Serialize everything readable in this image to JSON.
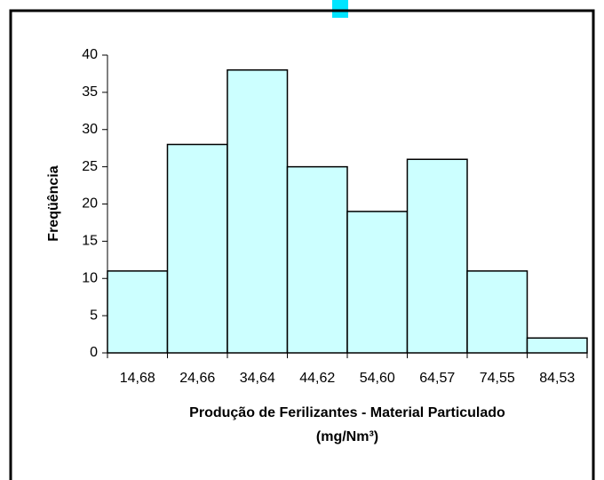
{
  "chart_data": {
    "type": "bar",
    "categories": [
      "14,68",
      "24,66",
      "34,64",
      "44,62",
      "54,60",
      "64,57",
      "74,55",
      "84,53"
    ],
    "values": [
      11,
      28,
      38,
      25,
      19,
      26,
      11,
      2
    ],
    "color": "#ccffff",
    "x_label": [
      "Produção de Ferilizantes - Material Particulado",
      "(mg/Nm³)"
    ],
    "y_label": "Freqüência",
    "ylim": [
      0,
      40
    ],
    "yticks": [
      0,
      5,
      10,
      15,
      20,
      25,
      30,
      35,
      40
    ],
    "grid": false
  }
}
